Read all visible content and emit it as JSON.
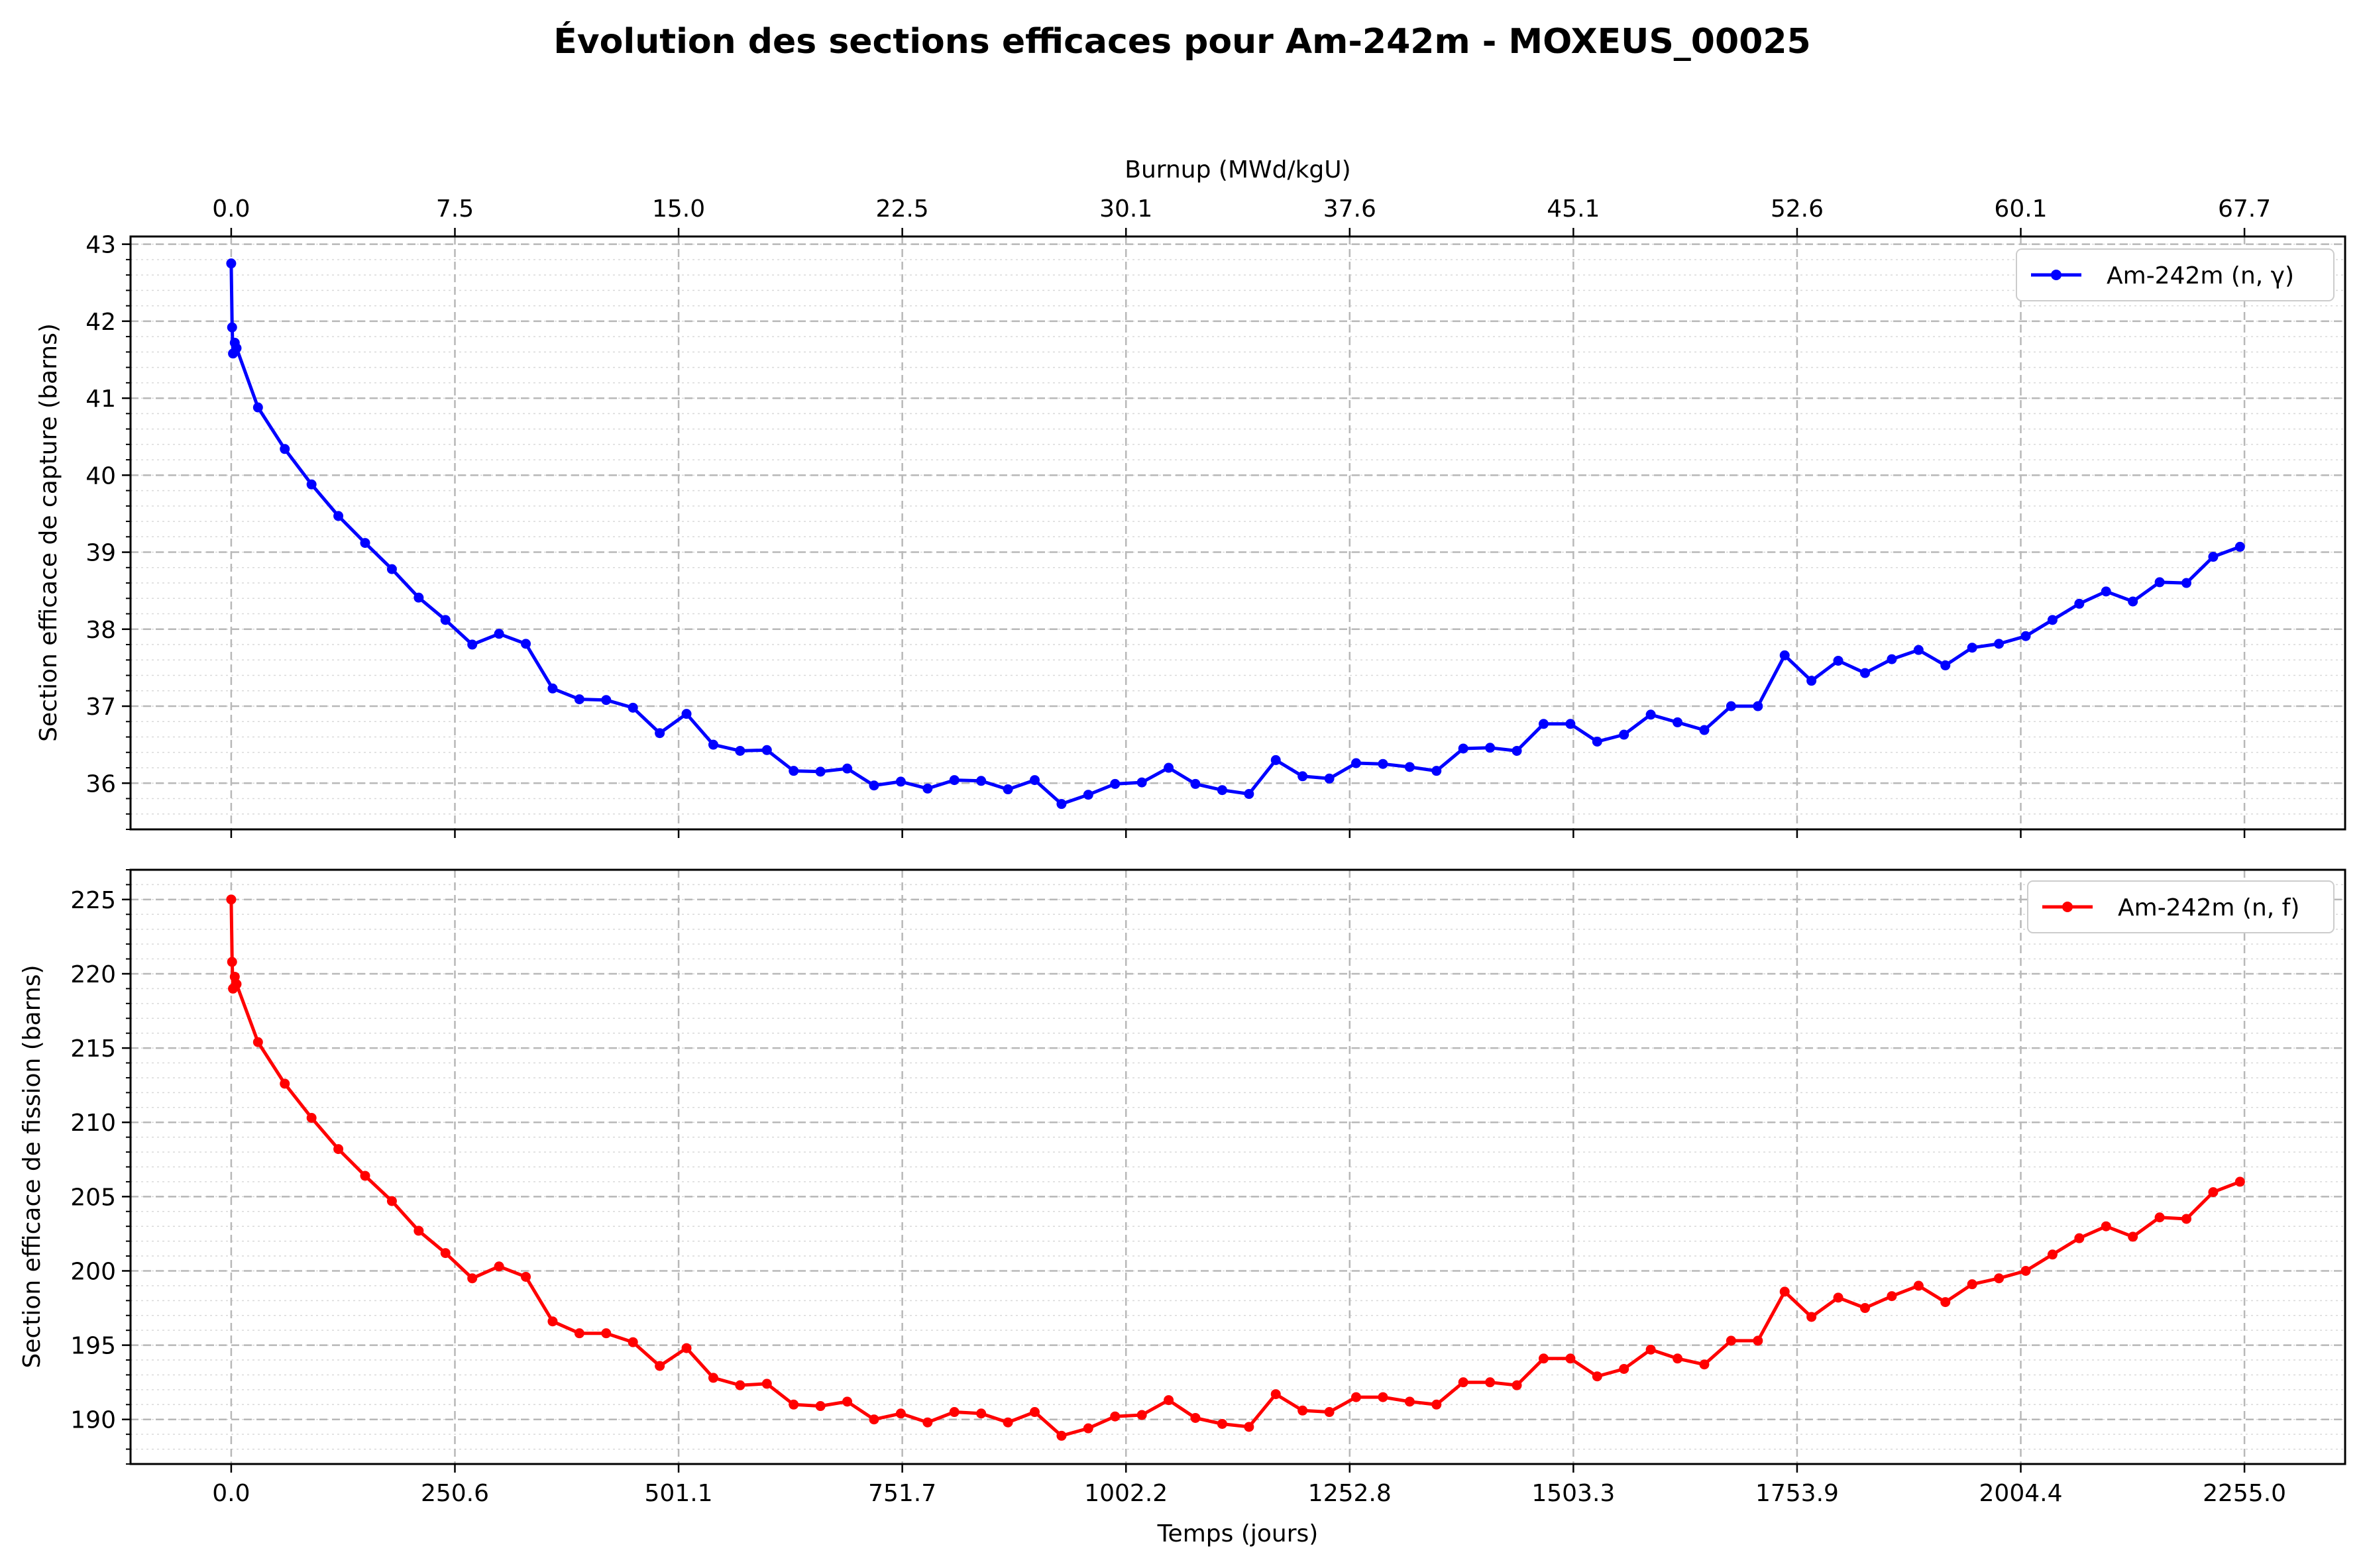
{
  "title": "Évolution des sections efficaces pour Am-242m - MOXEUS_00025",
  "colors": {
    "capture": "#0000ff",
    "fission": "#ff0000"
  },
  "chart_data": [
    {
      "type": "line",
      "xlabel": "",
      "x2label": "Burnup (MWd/kgU)",
      "x2_ticks": [
        "0.0",
        "7.5",
        "15.0",
        "22.5",
        "30.1",
        "37.6",
        "45.1",
        "52.6",
        "60.1",
        "67.7"
      ],
      "ylabel": "Section efficace de capture (barns)",
      "xlim": [
        -112.75,
        2367.75
      ],
      "ylim": [
        35.4,
        43.1
      ],
      "y_ticks": [
        36,
        37,
        38,
        39,
        40,
        41,
        42,
        43
      ],
      "grid": true,
      "legend_position": "top-right",
      "series": [
        {
          "name": "Am-242m (n, γ)",
          "color": "#0000ff",
          "x": [
            0,
            1,
            2,
            4,
            6,
            30,
            60,
            90,
            120,
            150,
            180,
            210,
            240,
            270,
            300,
            330,
            360,
            390,
            420,
            450,
            480,
            510,
            540,
            570,
            600,
            630,
            660,
            690,
            720,
            750,
            780,
            810,
            840,
            870,
            900,
            930,
            960,
            990,
            1020,
            1050,
            1080,
            1110,
            1140,
            1170,
            1200,
            1230,
            1260,
            1290,
            1320,
            1350,
            1380,
            1410,
            1440,
            1470,
            1500,
            1530,
            1560,
            1590,
            1620,
            1650,
            1680,
            1710,
            1740,
            1770,
            1800,
            1830,
            1860,
            1890,
            1920,
            1950,
            1980,
            2010,
            2040,
            2070,
            2100,
            2130,
            2160,
            2190,
            2220,
            2250
          ],
          "y": [
            42.75,
            41.92,
            41.58,
            41.72,
            41.65,
            40.88,
            40.34,
            39.88,
            39.47,
            39.12,
            38.78,
            38.41,
            38.12,
            37.8,
            37.94,
            37.81,
            37.23,
            37.09,
            37.08,
            36.98,
            36.65,
            36.9,
            36.5,
            36.42,
            36.43,
            36.16,
            36.15,
            36.19,
            35.97,
            36.02,
            35.93,
            36.04,
            36.03,
            35.92,
            36.04,
            35.73,
            35.85,
            35.99,
            36.01,
            36.2,
            35.99,
            35.91,
            35.86,
            36.3,
            36.09,
            36.06,
            36.26,
            36.25,
            36.21,
            36.16,
            36.45,
            36.46,
            36.42,
            36.77,
            36.77,
            36.54,
            36.63,
            36.89,
            36.79,
            36.69,
            37.0,
            37.0,
            37.66,
            37.33,
            37.59,
            37.43,
            37.61,
            37.73,
            37.53,
            37.76,
            37.81,
            37.91,
            38.12,
            38.33,
            38.49,
            38.36,
            38.61,
            38.6,
            38.94,
            39.07
          ]
        }
      ]
    },
    {
      "type": "line",
      "xlabel": "Temps (jours)",
      "x_ticks": [
        "0.0",
        "250.6",
        "501.1",
        "751.7",
        "1002.2",
        "1252.8",
        "1503.3",
        "1753.9",
        "2004.4",
        "2255.0"
      ],
      "ylabel": "Section efficace de fission (barns)",
      "xlim": [
        -112.75,
        2367.75
      ],
      "ylim": [
        187,
        227
      ],
      "y_ticks": [
        190,
        195,
        200,
        205,
        210,
        215,
        220,
        225
      ],
      "grid": true,
      "legend_position": "top-right",
      "series": [
        {
          "name": "Am-242m (n, f)",
          "color": "#ff0000",
          "x": [
            0,
            1,
            2,
            4,
            6,
            30,
            60,
            90,
            120,
            150,
            180,
            210,
            240,
            270,
            300,
            330,
            360,
            390,
            420,
            450,
            480,
            510,
            540,
            570,
            600,
            630,
            660,
            690,
            720,
            750,
            780,
            810,
            840,
            870,
            900,
            930,
            960,
            990,
            1020,
            1050,
            1080,
            1110,
            1140,
            1170,
            1200,
            1230,
            1260,
            1290,
            1320,
            1350,
            1380,
            1410,
            1440,
            1470,
            1500,
            1530,
            1560,
            1590,
            1620,
            1650,
            1680,
            1710,
            1740,
            1770,
            1800,
            1830,
            1860,
            1890,
            1920,
            1950,
            1980,
            2010,
            2040,
            2070,
            2100,
            2130,
            2160,
            2190,
            2220,
            2250
          ],
          "y": [
            225.0,
            220.8,
            219.0,
            219.8,
            219.3,
            215.4,
            212.6,
            210.3,
            208.2,
            206.4,
            204.7,
            202.7,
            201.2,
            199.5,
            200.3,
            199.6,
            196.6,
            195.8,
            195.8,
            195.2,
            193.6,
            194.8,
            192.8,
            192.3,
            192.4,
            191.0,
            190.9,
            191.2,
            190.0,
            190.4,
            189.8,
            190.5,
            190.4,
            189.8,
            190.5,
            188.9,
            189.4,
            190.2,
            190.3,
            191.3,
            190.1,
            189.7,
            189.5,
            191.7,
            190.6,
            190.5,
            191.5,
            191.5,
            191.2,
            191.0,
            192.5,
            192.5,
            192.3,
            194.1,
            194.1,
            192.9,
            193.4,
            194.7,
            194.1,
            193.7,
            195.3,
            195.3,
            198.6,
            196.9,
            198.2,
            197.5,
            198.3,
            199.0,
            197.9,
            199.1,
            199.5,
            200.0,
            201.1,
            202.2,
            203.0,
            202.3,
            203.6,
            203.5,
            205.3,
            206.0
          ]
        }
      ]
    }
  ]
}
